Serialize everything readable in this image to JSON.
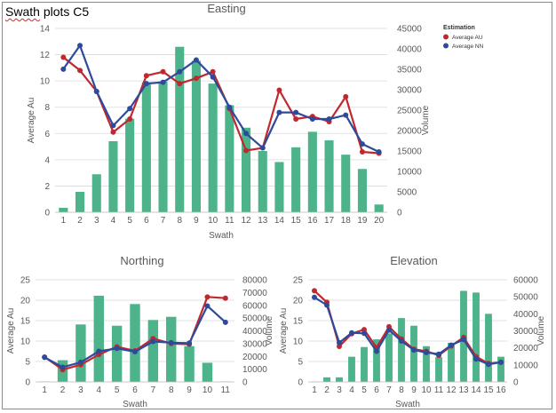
{
  "page_title": {
    "word1": "Swath",
    "word2": "plots C5"
  },
  "colors": {
    "bar": "#4db38a",
    "average_au": "#c0282f",
    "average_nn": "#2e4a9a",
    "grid": "#d9d9d9",
    "axis_text": "#595959",
    "title_text": "#595959"
  },
  "chart_data": [
    {
      "type": "bar+line",
      "title": "Easting",
      "xlabel": "Swath",
      "ylabel": "Average Au",
      "y2label": "Volume",
      "categories": [
        "1",
        "2",
        "3",
        "4",
        "5",
        "6",
        "7",
        "8",
        "9",
        "10",
        "11",
        "12",
        "13",
        "14",
        "15",
        "16",
        "17",
        "18",
        "19",
        "20"
      ],
      "ylim": [
        0,
        14
      ],
      "yticks": [
        0,
        2,
        4,
        6,
        8,
        10,
        12,
        14
      ],
      "y2lim": [
        0,
        45000
      ],
      "y2ticks": [
        0,
        5000,
        10000,
        15000,
        20000,
        25000,
        30000,
        35000,
        40000,
        45000
      ],
      "volume": [
        1100,
        5000,
        9300,
        17400,
        22900,
        31800,
        32000,
        40500,
        37100,
        31500,
        26200,
        20700,
        15000,
        12300,
        15900,
        19700,
        17600,
        14100,
        10600,
        1900
      ],
      "series": [
        {
          "name": "Average AU",
          "values": [
            11.8,
            10.8,
            9.2,
            6.1,
            7.1,
            10.4,
            10.7,
            9.8,
            10.2,
            10.7,
            7.9,
            4.7,
            4.9,
            9.3,
            7.1,
            7.3,
            6.9,
            8.8,
            4.6,
            4.5
          ]
        },
        {
          "name": "Average NN",
          "values": [
            10.9,
            12.7,
            9.2,
            6.6,
            7.9,
            9.8,
            9.9,
            10.7,
            11.6,
            10.3,
            8.0,
            6.0,
            4.9,
            7.6,
            7.6,
            7.1,
            7.1,
            7.4,
            5.2,
            4.6
          ]
        }
      ],
      "legend": {
        "title": "Estimation",
        "position": "top-right"
      }
    },
    {
      "type": "bar+line",
      "title": "Northing",
      "xlabel": "Swath",
      "ylabel": "Average Au",
      "y2label": "Volume",
      "categories": [
        "1",
        "2",
        "3",
        "4",
        "5",
        "6",
        "7",
        "8",
        "9",
        "10",
        "11"
      ],
      "ylim": [
        0,
        25
      ],
      "yticks": [
        0,
        5,
        10,
        15,
        20,
        25
      ],
      "y2lim": [
        0,
        80000
      ],
      "y2ticks": [
        0,
        10000,
        20000,
        30000,
        40000,
        50000,
        60000,
        70000,
        80000
      ],
      "volume": [
        300,
        17000,
        45000,
        67500,
        44000,
        61000,
        48500,
        51000,
        28000,
        15000,
        300
      ],
      "series": [
        {
          "name": "Average AU",
          "values": [
            6.1,
            3.0,
            4.2,
            6.7,
            8.6,
            7.6,
            10.6,
            9.4,
            9.2,
            20.8,
            20.5
          ]
        },
        {
          "name": "Average NN",
          "values": [
            6.0,
            3.6,
            4.8,
            7.5,
            8.2,
            7.4,
            9.9,
            9.6,
            9.5,
            18.6,
            14.6
          ]
        }
      ]
    },
    {
      "type": "bar+line",
      "title": "Elevation",
      "xlabel": "Swath",
      "ylabel": "Average Au",
      "y2label": "Volume",
      "categories": [
        "1",
        "2",
        "3",
        "4",
        "5",
        "6",
        "7",
        "8",
        "9",
        "10",
        "11",
        "12",
        "13",
        "14",
        "15",
        "16"
      ],
      "ylim": [
        0,
        25
      ],
      "yticks": [
        0,
        5,
        10,
        15,
        20,
        25
      ],
      "y2lim": [
        0,
        60000
      ],
      "y2ticks": [
        0,
        10000,
        20000,
        30000,
        40000,
        50000,
        60000
      ],
      "volume": [
        200,
        2700,
        2700,
        14800,
        20500,
        25000,
        28500,
        37500,
        33000,
        21000,
        14500,
        23000,
        53500,
        52500,
        40000,
        14800
      ],
      "series": [
        {
          "name": "Average AU",
          "values": [
            22.3,
            19.5,
            8.7,
            11.8,
            12.8,
            8.4,
            13.5,
            10.5,
            8.0,
            7.5,
            6.5,
            8.8,
            10.9,
            6.2,
            4.5,
            4.8
          ]
        },
        {
          "name": "Average NN",
          "values": [
            20.7,
            18.8,
            9.6,
            12.0,
            11.9,
            7.5,
            12.7,
            10.0,
            7.8,
            7.2,
            6.8,
            9.0,
            10.4,
            5.6,
            4.3,
            4.8
          ]
        }
      ]
    }
  ]
}
